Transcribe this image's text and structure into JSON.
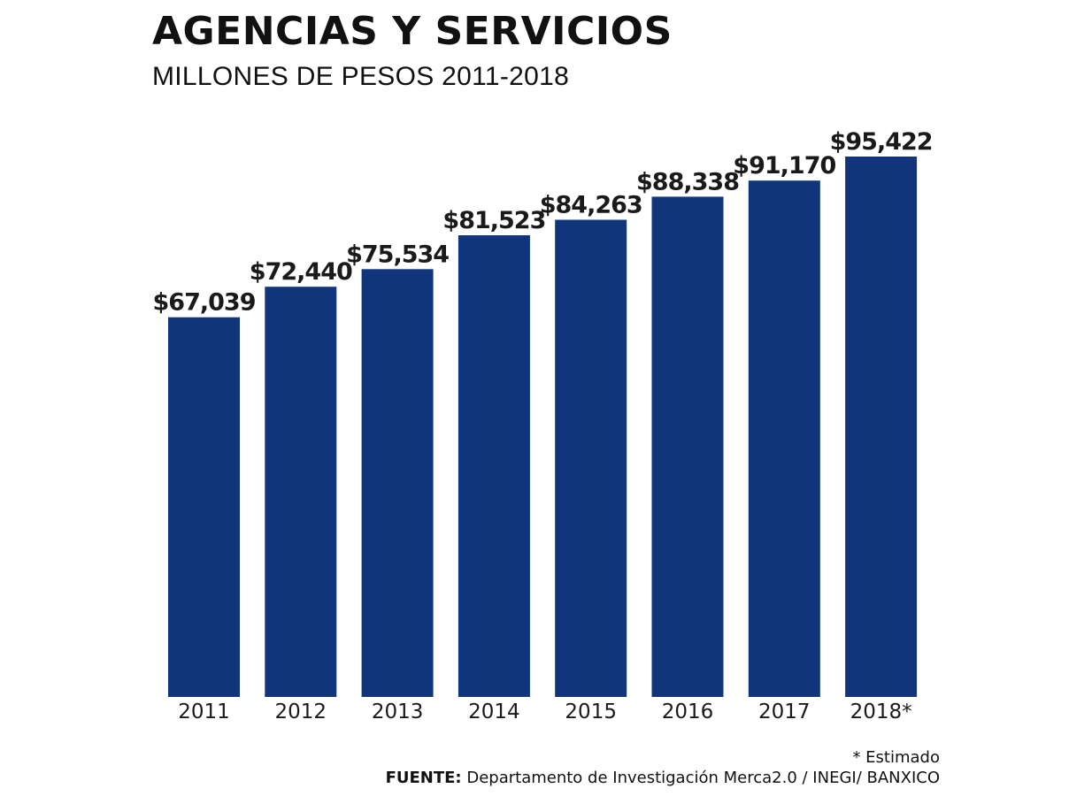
{
  "header": {
    "title": "AGENCIAS Y SERVICIOS",
    "subtitle": "MILLONES DE PESOS 2011-2018"
  },
  "footer": {
    "note": "* Estimado",
    "source_label": "FUENTE:",
    "source_text": " Departamento de Investigación Merca2.0 / INEGI/ BANXICO"
  },
  "colors": {
    "bar": "#10357b",
    "text": "#1a1a1a"
  },
  "chart_data": {
    "type": "bar",
    "title": "AGENCIAS Y SERVICIOS",
    "subtitle": "MILLONES DE PESOS 2011-2018",
    "categories": [
      "2011",
      "2012",
      "2013",
      "2014",
      "2015",
      "2016",
      "2017",
      "2018*"
    ],
    "values": [
      67039,
      72440,
      75534,
      81523,
      84263,
      88338,
      91170,
      95422
    ],
    "value_labels": [
      "$67,039",
      "$72,440",
      "$75,534",
      "$81,523",
      "$84,263",
      "$88,338",
      "$91,170",
      "$95,422"
    ],
    "xlabel": "",
    "ylabel": "",
    "ylim": [
      0,
      95422
    ],
    "grid": false,
    "legend": "none"
  }
}
